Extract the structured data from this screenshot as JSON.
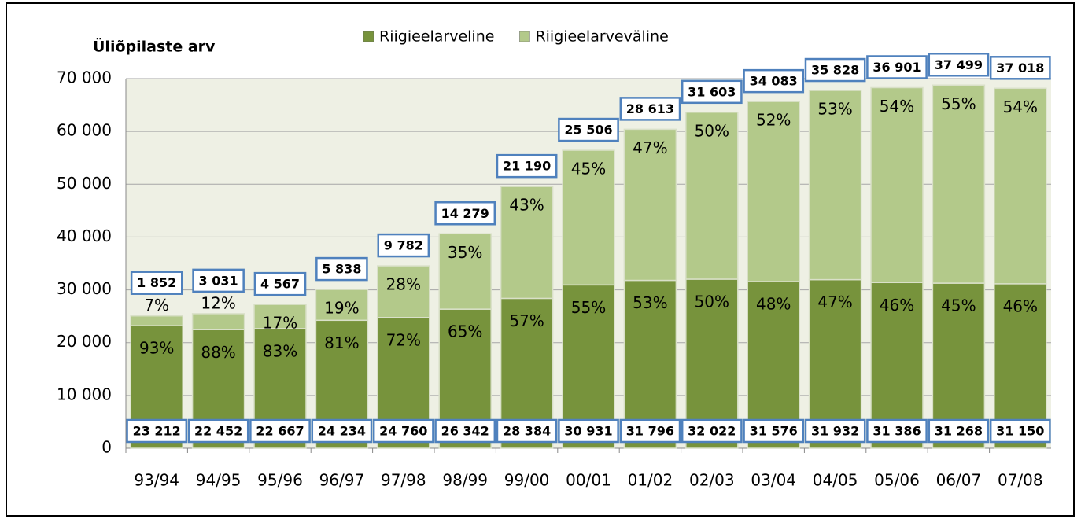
{
  "chart_data": {
    "type": "bar",
    "stacked": true,
    "y_axis_title": "Üliõpilaste arv",
    "categories": [
      "93/94",
      "94/95",
      "95/96",
      "96/97",
      "97/98",
      "98/99",
      "99/00",
      "00/01",
      "01/02",
      "02/03",
      "03/04",
      "04/05",
      "05/06",
      "06/07",
      "07/08"
    ],
    "series": [
      {
        "name": "Riigieelarveline",
        "color": "#77933c",
        "values": [
          23212,
          22452,
          22667,
          24234,
          24760,
          26342,
          28384,
          30931,
          31796,
          32022,
          31576,
          31932,
          31386,
          31268,
          31150
        ],
        "value_labels": [
          "23 212",
          "22 452",
          "22 667",
          "24 234",
          "24 760",
          "26 342",
          "28 384",
          "30 931",
          "31 796",
          "32 022",
          "31 576",
          "31 932",
          "31 386",
          "31 268",
          "31 150"
        ],
        "share_labels": [
          "93%",
          "88%",
          "83%",
          "81%",
          "72%",
          "65%",
          "57%",
          "55%",
          "53%",
          "50%",
          "48%",
          "47%",
          "46%",
          "45%",
          "46%"
        ]
      },
      {
        "name": "Riigieelarveväline",
        "color": "#b3c98a",
        "values": [
          1852,
          3031,
          4567,
          5838,
          9782,
          14279,
          21190,
          25506,
          28613,
          31603,
          34083,
          35828,
          36901,
          37499,
          37018
        ],
        "value_labels": [
          "1 852",
          "3 031",
          "4 567",
          "5 838",
          "9 782",
          "14 279",
          "21 190",
          "25 506",
          "28 613",
          "31 603",
          "34 083",
          "35 828",
          "36 901",
          "37 499",
          "37 018"
        ],
        "share_labels": [
          "7%",
          "12%",
          "17%",
          "19%",
          "28%",
          "35%",
          "43%",
          "45%",
          "47%",
          "50%",
          "52%",
          "53%",
          "54%",
          "55%",
          "54%"
        ]
      }
    ],
    "ylim": [
      0,
      70000
    ],
    "yticks": [
      0,
      {
        "value": 10000,
        "label": "10 000"
      },
      {
        "value": 20000,
        "label": "20 000"
      },
      {
        "value": 30000,
        "label": "30 000"
      },
      {
        "value": 40000,
        "label": "40 000"
      },
      {
        "value": 50000,
        "label": "50 000"
      },
      {
        "value": 60000,
        "label": "60 000"
      },
      {
        "value": 70000,
        "label": "70 000"
      }
    ],
    "grid": true,
    "legend": "top"
  }
}
